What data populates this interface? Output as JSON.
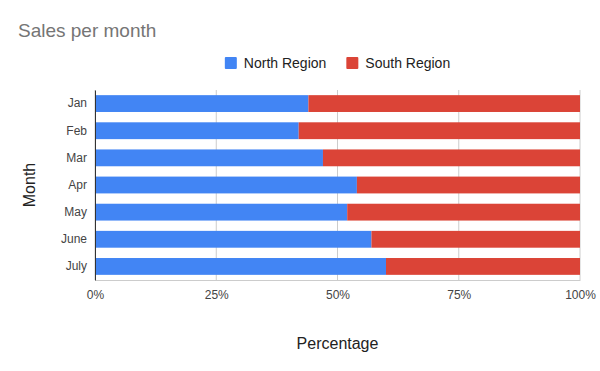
{
  "chart_data": {
    "type": "bar",
    "title": "Sales per month",
    "orientation": "horizontal",
    "stacked": true,
    "grid": true,
    "legend": "top",
    "x_label": "Percentage",
    "y_label": "Month",
    "categories": [
      "Jan",
      "Feb",
      "Mar",
      "Apr",
      "May",
      "June",
      "July"
    ],
    "series": [
      {
        "name": "North Region",
        "color": "#4285f4",
        "values": [
          44,
          42,
          47,
          54,
          52,
          57,
          60
        ]
      },
      {
        "name": "South Region",
        "color": "#db4437",
        "values": [
          56,
          58,
          53,
          46,
          48,
          43,
          40
        ]
      }
    ],
    "xlim": [
      0,
      100
    ],
    "xticks": [
      {
        "value": 0,
        "label": "0%"
      },
      {
        "value": 25,
        "label": "25%"
      },
      {
        "value": 50,
        "label": "50%"
      },
      {
        "value": 75,
        "label": "75%"
      },
      {
        "value": 100,
        "label": "100%"
      }
    ]
  }
}
